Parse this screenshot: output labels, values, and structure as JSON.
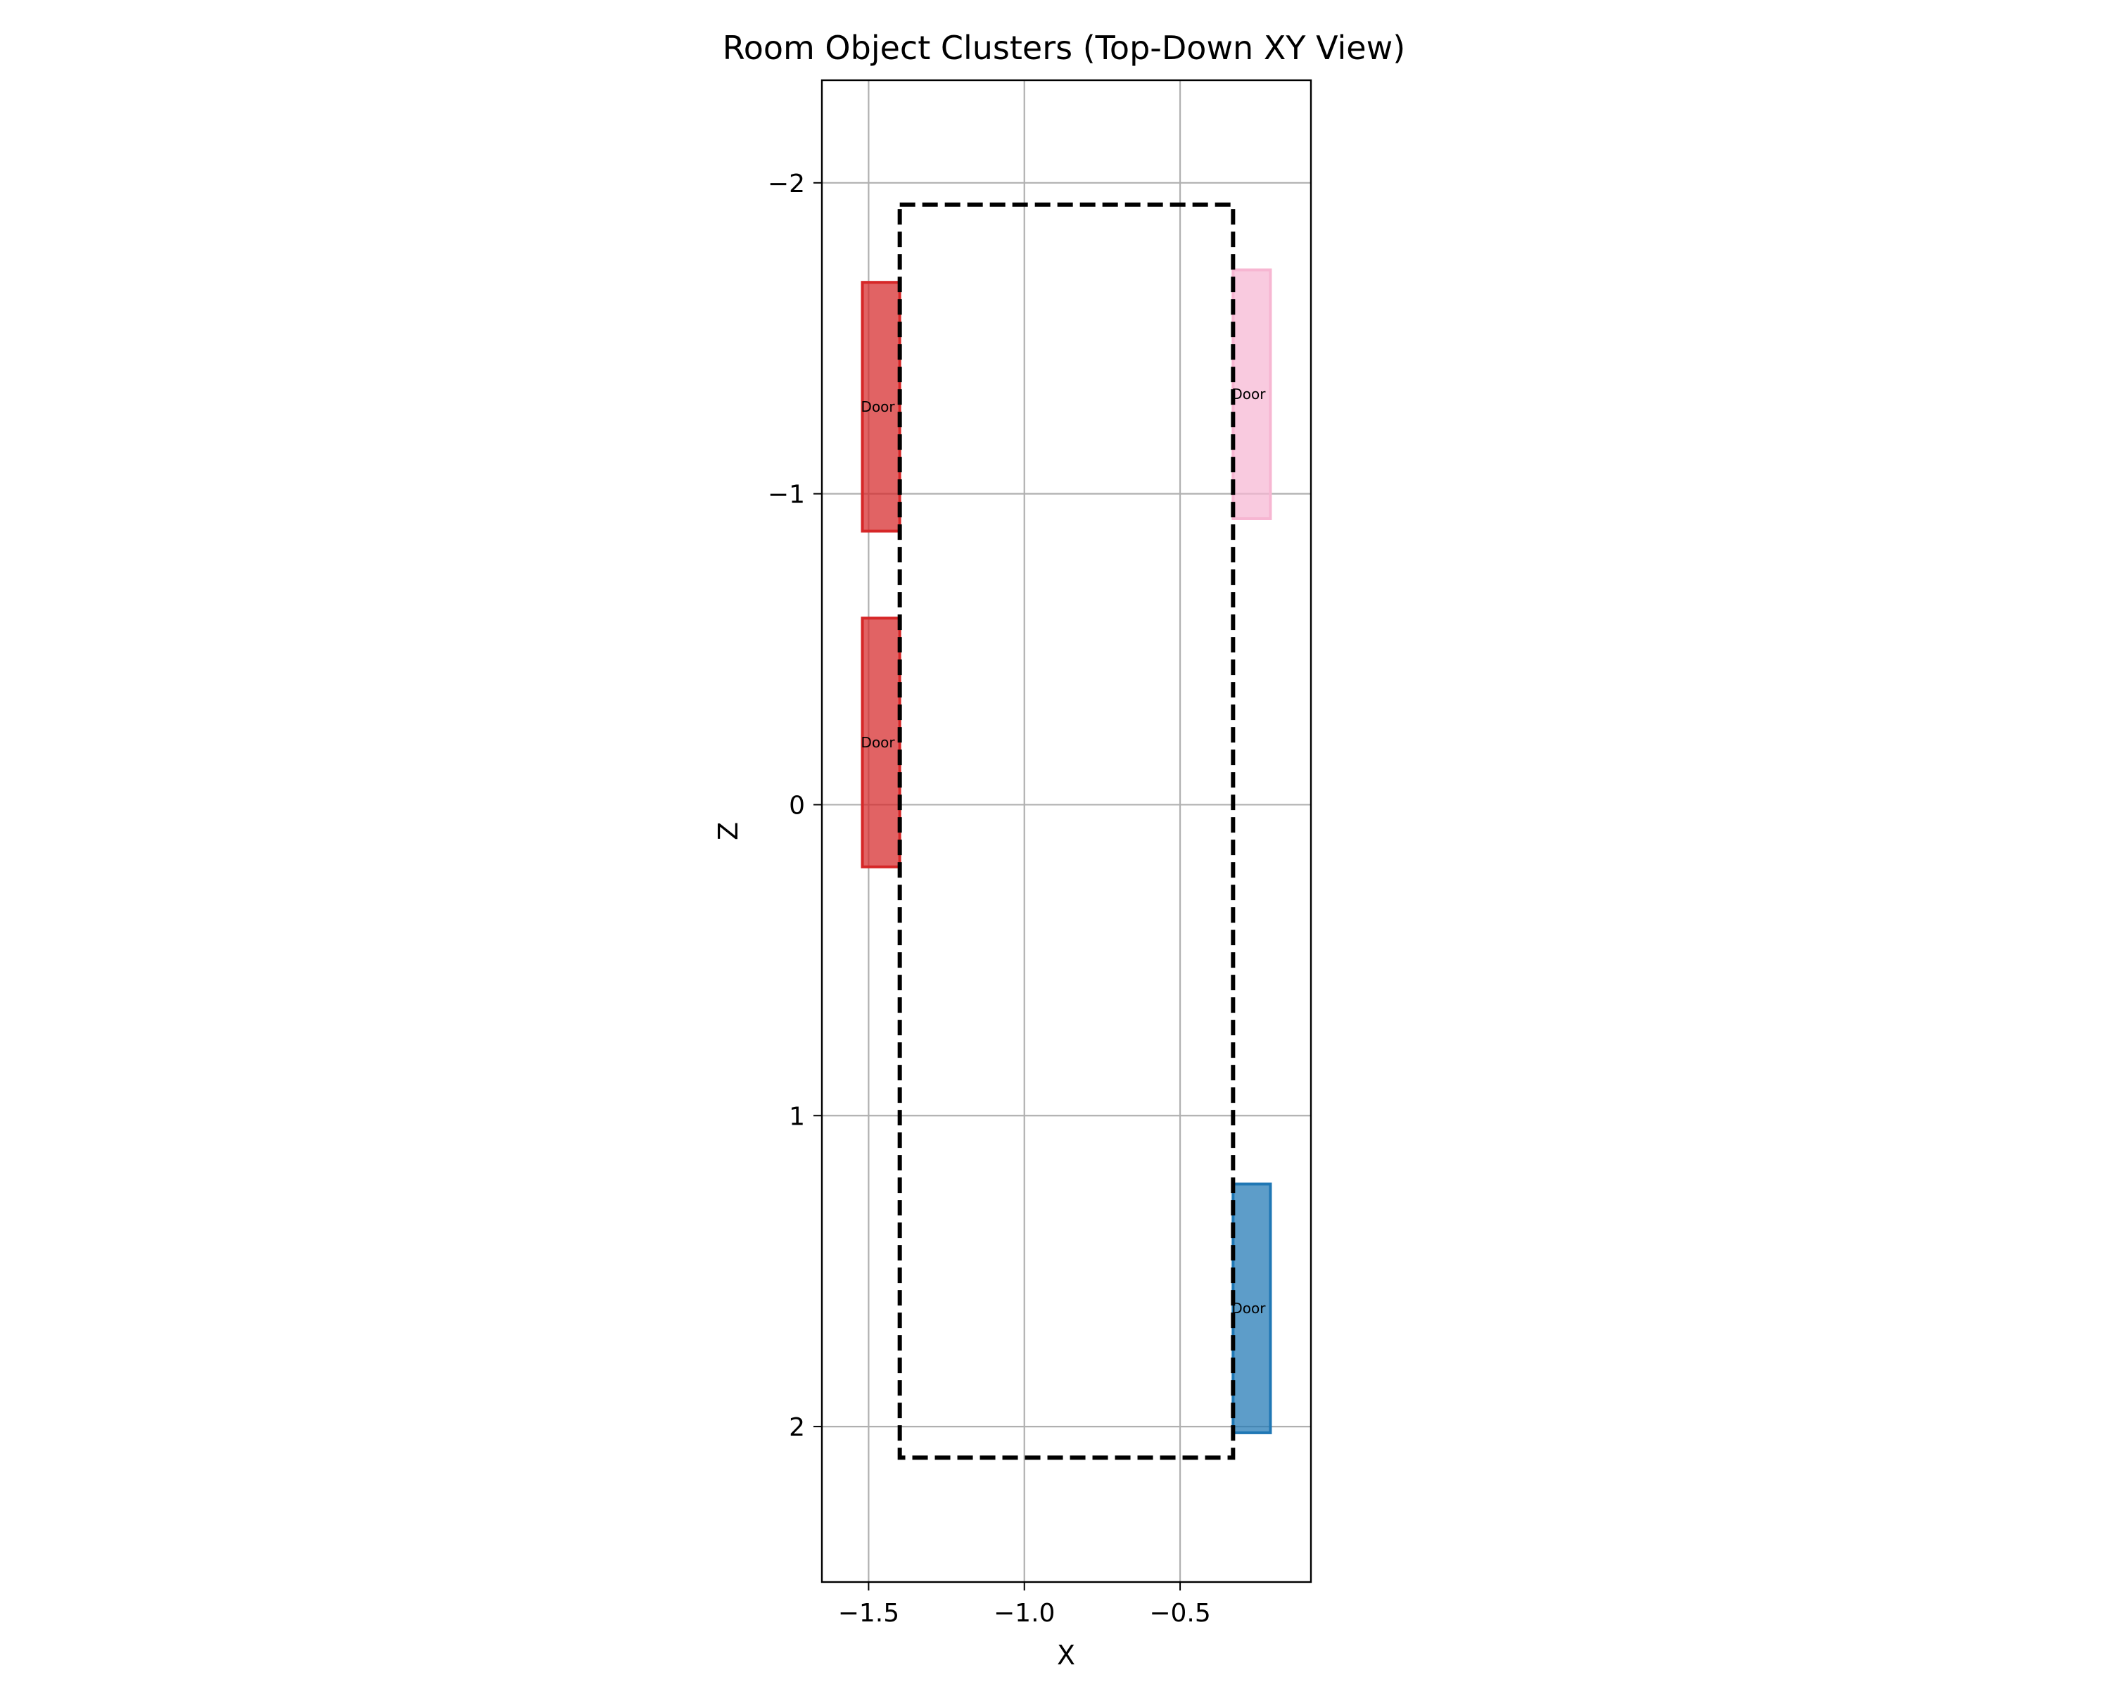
{
  "chart_data": {
    "type": "rectangles",
    "title": "Room Object Clusters (Top-Down XY View)",
    "xlabel": "X",
    "ylabel": "Z",
    "xlim": [
      -1.65,
      -0.08
    ],
    "ylim": [
      2.5,
      -2.33
    ],
    "y_inverted": true,
    "grid": true,
    "xticks": [
      {
        "value": -1.5,
        "label": "−1.5"
      },
      {
        "value": -1.0,
        "label": "−1.0"
      },
      {
        "value": -0.5,
        "label": "−0.5"
      }
    ],
    "yticks": [
      {
        "value": -2,
        "label": "−2"
      },
      {
        "value": -1,
        "label": "−1"
      },
      {
        "value": 0,
        "label": "0"
      },
      {
        "value": 1,
        "label": "1"
      },
      {
        "value": 2,
        "label": "2"
      }
    ],
    "room_boundary": {
      "x0": -1.4,
      "x1": -0.33,
      "z0": -1.93,
      "z1": 2.1,
      "style": "dashed",
      "color": "#000000"
    },
    "objects": [
      {
        "label": "Door",
        "x0": -1.52,
        "x1": -1.4,
        "z0": -1.68,
        "z1": -0.88,
        "fill": "#d62728",
        "edge": "#d62728"
      },
      {
        "label": "Door",
        "x0": -1.52,
        "x1": -1.4,
        "z0": -0.6,
        "z1": 0.2,
        "fill": "#d62728",
        "edge": "#d62728"
      },
      {
        "label": "Door",
        "x0": -0.33,
        "x1": -0.21,
        "z0": -1.72,
        "z1": -0.92,
        "fill": "#f7b6d2",
        "edge": "#f7b6d2"
      },
      {
        "label": "Door",
        "x0": -0.33,
        "x1": -0.21,
        "z0": 1.22,
        "z1": 2.02,
        "fill": "#1f77b4",
        "edge": "#1f77b4"
      }
    ]
  }
}
